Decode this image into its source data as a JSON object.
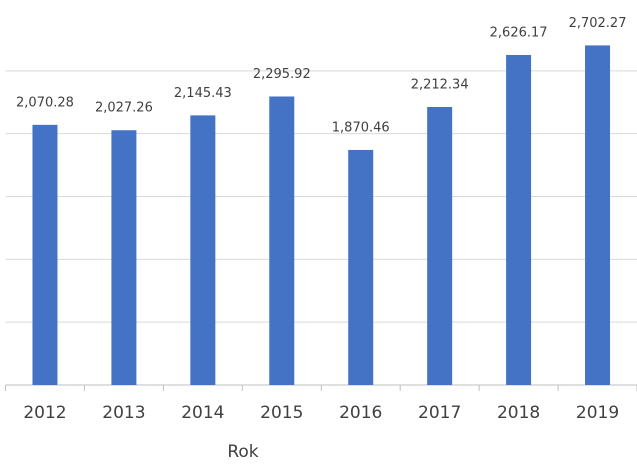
{
  "chart_data": {
    "type": "bar",
    "x_label": "Rok",
    "categories": [
      "2012",
      "2013",
      "2014",
      "2015",
      "2016",
      "2017",
      "2018",
      "2019"
    ],
    "values": [
      2070.28,
      2027.26,
      2145.43,
      2295.92,
      1870.46,
      2212.34,
      2626.17,
      2702.27
    ],
    "value_labels": [
      "2,070.28",
      "2,027.26",
      "2,145.43",
      "2,295.92",
      "1,870.46",
      "2,212.34",
      "2,626.17",
      "2,702.27"
    ],
    "color": "#4472c4",
    "ylim": [
      0,
      3000
    ],
    "yticks": [
      0,
      500,
      1000,
      1500,
      2000,
      2500
    ],
    "grid": true
  }
}
